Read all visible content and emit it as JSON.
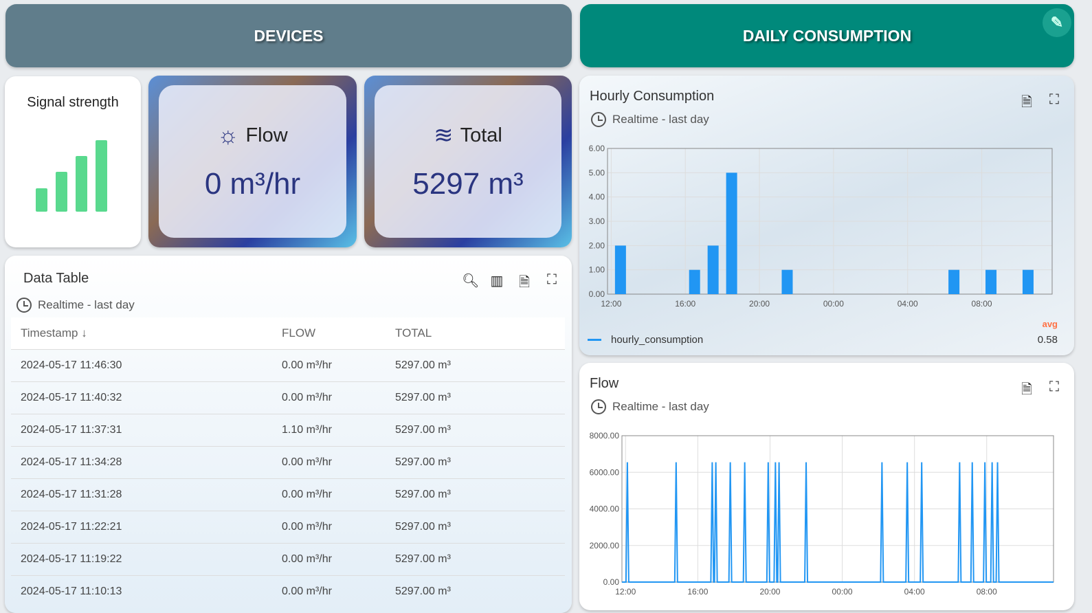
{
  "headers": {
    "devices": "DEVICES",
    "daily": "DAILY CONSUMPTION",
    "edit_icon": "pencil-icon"
  },
  "signal": {
    "title": "Signal strength",
    "level": 4,
    "max": 4,
    "color": "#59d98e"
  },
  "flow_card": {
    "label": "Flow",
    "value": "0 m³/hr",
    "icon": "water-pump-icon"
  },
  "total_card": {
    "label": "Total",
    "value": "5297 m³",
    "icon": "water-flow-icon"
  },
  "data_table": {
    "title": "Data Table",
    "timewindow": "Realtime - last day",
    "columns": [
      "Timestamp",
      "FLOW",
      "TOTAL"
    ],
    "rows": [
      [
        "2024-05-17 11:46:30",
        "0.00 m³/hr",
        "5297.00 m³"
      ],
      [
        "2024-05-17 11:40:32",
        "0.00 m³/hr",
        "5297.00 m³"
      ],
      [
        "2024-05-17 11:37:31",
        "1.10 m³/hr",
        "5297.00 m³"
      ],
      [
        "2024-05-17 11:34:28",
        "0.00 m³/hr",
        "5297.00 m³"
      ],
      [
        "2024-05-17 11:31:28",
        "0.00 m³/hr",
        "5297.00 m³"
      ],
      [
        "2024-05-17 11:22:21",
        "0.00 m³/hr",
        "5297.00 m³"
      ],
      [
        "2024-05-17 11:19:22",
        "0.00 m³/hr",
        "5297.00 m³"
      ],
      [
        "2024-05-17 11:10:13",
        "0.00 m³/hr",
        "5297.00 m³"
      ]
    ]
  },
  "hourly": {
    "title": "Hourly Consumption",
    "timewindow": "Realtime - last day",
    "legend": "hourly_consumption",
    "avg_label": "avg",
    "avg_value": "0.58"
  },
  "flow_chart": {
    "title": "Flow",
    "timewindow": "Realtime - last day"
  },
  "chart_data": [
    {
      "type": "bar",
      "title": "Hourly Consumption",
      "series": [
        {
          "name": "hourly_consumption",
          "color": "#2196f3",
          "x_hours_from_12": [
            0.5,
            4.5,
            5.5,
            6.5,
            9.5,
            18.5,
            20.5,
            22.5
          ],
          "values": [
            2,
            1,
            2,
            5,
            1,
            1,
            1,
            1
          ]
        }
      ],
      "xlim": [
        -0.2,
        23.8
      ],
      "ylim": [
        0,
        6
      ],
      "yticks": [
        "0.00",
        "1.00",
        "2.00",
        "3.00",
        "4.00",
        "5.00",
        "6.00"
      ],
      "xticks": [
        "12:00",
        "16:00",
        "20:00",
        "00:00",
        "04:00",
        "08:00"
      ]
    },
    {
      "type": "line",
      "title": "Flow",
      "series": [
        {
          "name": "flow",
          "color": "#2196f3",
          "spike_hours_from_12": [
            0.1,
            2.8,
            4.8,
            5.0,
            5.8,
            6.6,
            7.9,
            8.3,
            8.5,
            10.0,
            14.2,
            15.6,
            16.4,
            18.5,
            19.2,
            19.9,
            20.3,
            20.6
          ],
          "spike_value": 6550,
          "baseline": 0
        }
      ],
      "xlim": [
        -0.2,
        23.7
      ],
      "ylim": [
        0,
        8000
      ],
      "yticks": [
        "0.00",
        "2000.00",
        "4000.00",
        "6000.00",
        "8000.00"
      ],
      "xticks": [
        "12:00",
        "16:00",
        "20:00",
        "00:00",
        "04:00",
        "08:00"
      ]
    }
  ]
}
